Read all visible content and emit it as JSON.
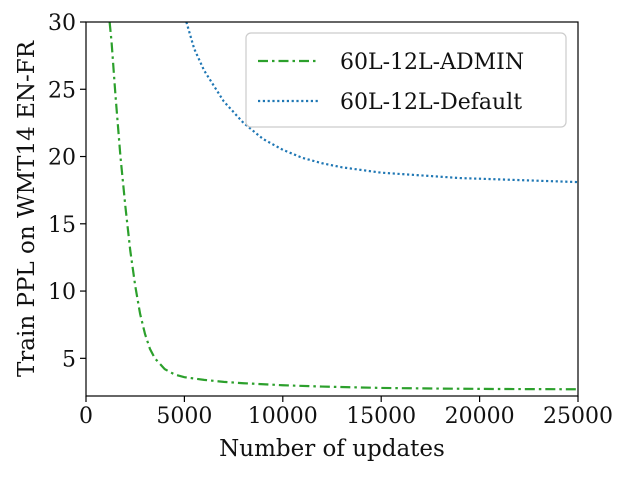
{
  "chart_data": {
    "type": "line",
    "xlabel": "Number of updates",
    "ylabel": "Train PPL on WMT14 EN-FR",
    "xlim": [
      0,
      25000
    ],
    "ylim": [
      2.2,
      30
    ],
    "xticks": [
      0,
      5000,
      10000,
      15000,
      20000,
      25000
    ],
    "xtick_labels": [
      "0",
      "5000",
      "10000",
      "15000",
      "20000",
      "25000"
    ],
    "yticks": [
      5,
      10,
      15,
      20,
      25,
      30
    ],
    "ytick_labels": [
      "5",
      "10",
      "15",
      "20",
      "25",
      "30"
    ],
    "grid": false,
    "legend_position": "top-right",
    "series": [
      {
        "name": "60L-12L-ADMIN",
        "color": "#2ca02c",
        "style": "dashdot",
        "x": [
          1200,
          1300,
          1500,
          1750,
          2000,
          2250,
          2500,
          2750,
          3000,
          3250,
          3500,
          4000,
          4500,
          5000,
          6000,
          7000,
          8000,
          10000,
          12000,
          15000,
          18000,
          21000,
          25000
        ],
        "y": [
          30,
          28.5,
          24.5,
          20.0,
          16.3,
          13.0,
          10.4,
          8.3,
          6.8,
          5.7,
          5.0,
          4.2,
          3.8,
          3.6,
          3.4,
          3.25,
          3.15,
          3.0,
          2.9,
          2.8,
          2.75,
          2.72,
          2.7
        ]
      },
      {
        "name": "60L-12L-Default",
        "color": "#1f77b4",
        "style": "dotted",
        "x": [
          5100,
          5500,
          6000,
          7000,
          8000,
          9000,
          10000,
          11000,
          12000,
          13000,
          14000,
          15000,
          17000,
          19000,
          21000,
          23000,
          25000
        ],
        "y": [
          30,
          28.0,
          26.4,
          24.1,
          22.5,
          21.3,
          20.5,
          19.9,
          19.5,
          19.2,
          19.0,
          18.8,
          18.6,
          18.4,
          18.3,
          18.2,
          18.1
        ]
      }
    ]
  }
}
